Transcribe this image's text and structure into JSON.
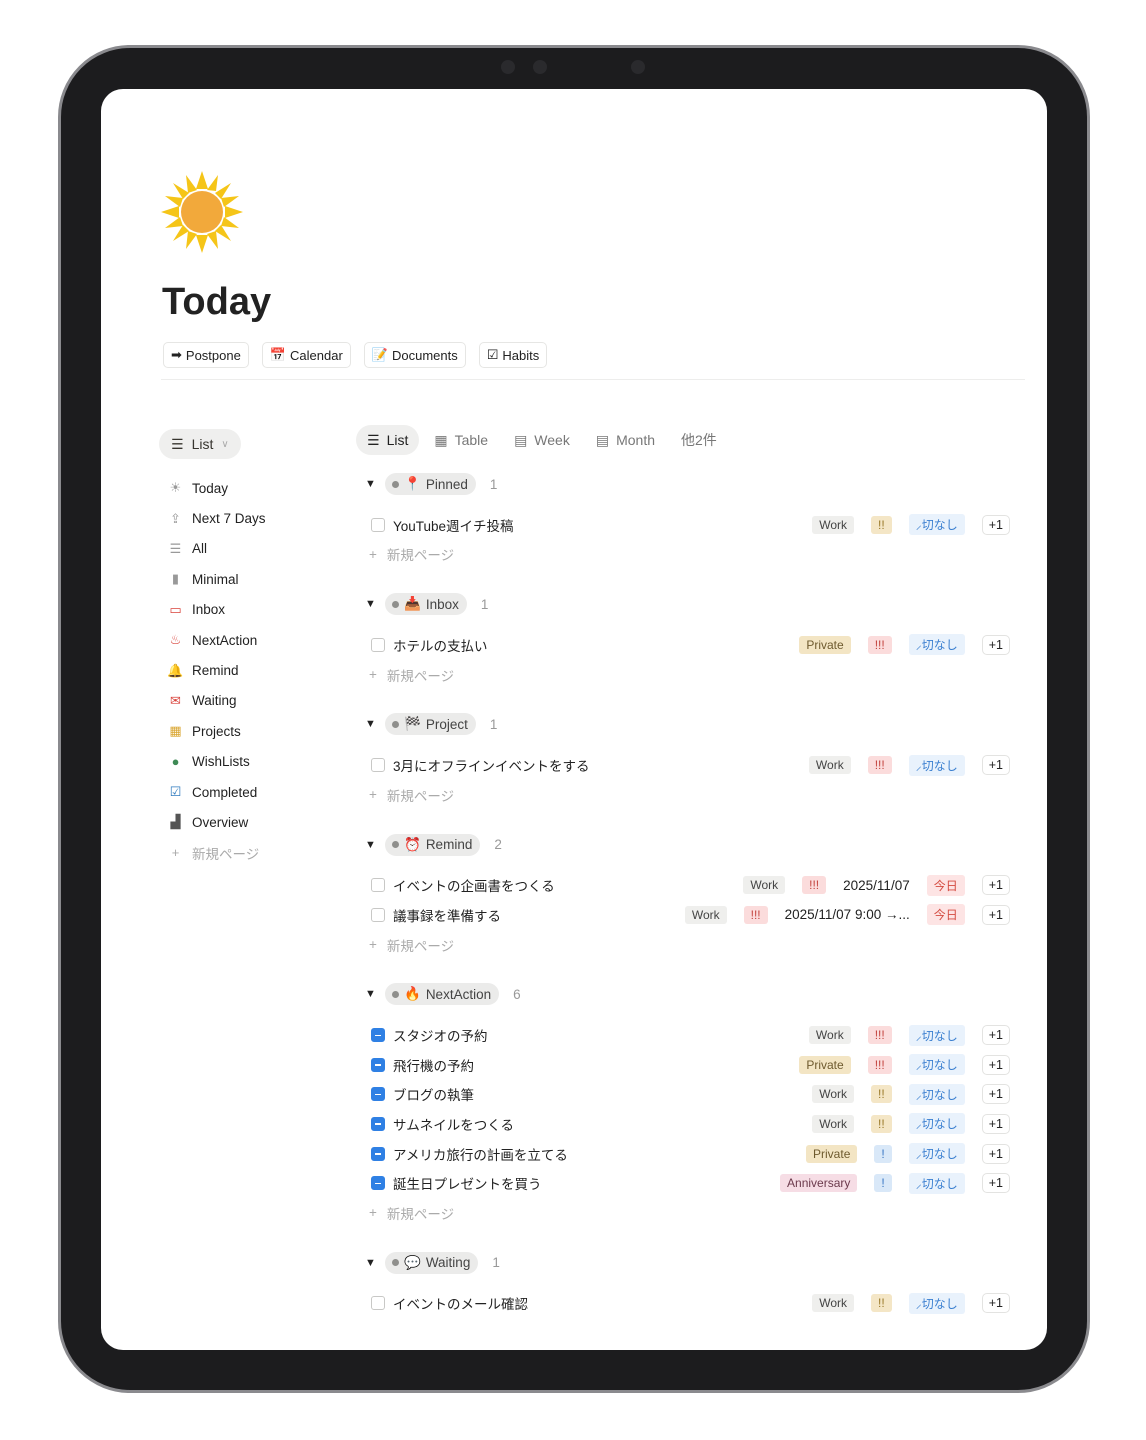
{
  "page": {
    "title": "Today",
    "icon": "sun-icon"
  },
  "links": [
    {
      "icon": "➡",
      "label": "Postpone"
    },
    {
      "icon": "📅",
      "label": "Calendar"
    },
    {
      "icon": "📝",
      "label": "Documents"
    },
    {
      "icon": "☑",
      "label": "Habits"
    }
  ],
  "sidebar": {
    "view_label": "List",
    "items": [
      {
        "icon": "☀",
        "label": "Today",
        "color": "#999"
      },
      {
        "icon": "⇪",
        "label": "Next 7 Days",
        "color": "#999"
      },
      {
        "icon": "☰",
        "label": "All",
        "color": "#999"
      },
      {
        "icon": "▮",
        "label": "Minimal",
        "color": "#999"
      },
      {
        "icon": "▭",
        "label": "Inbox",
        "color": "#d9443c"
      },
      {
        "icon": "♨",
        "label": "NextAction",
        "color": "#d9443c"
      },
      {
        "icon": "🔔",
        "label": "Remind",
        "color": "#d9443c"
      },
      {
        "icon": "✉",
        "label": "Waiting",
        "color": "#d9443c"
      },
      {
        "icon": "▦",
        "label": "Projects",
        "color": "#d9a52f"
      },
      {
        "icon": "●",
        "label": "WishLists",
        "color": "#3e8a55"
      },
      {
        "icon": "☑",
        "label": "Completed",
        "color": "#2f7bbf"
      },
      {
        "icon": "▟",
        "label": "Overview",
        "color": "#555"
      }
    ],
    "new_page": "新規ページ"
  },
  "tabs": [
    {
      "icon": "☰",
      "label": "List",
      "active": true
    },
    {
      "icon": "▦",
      "label": "Table"
    },
    {
      "icon": "▤",
      "label": "Week"
    },
    {
      "icon": "▤",
      "label": "Month"
    },
    {
      "icon": "",
      "label": "他2件"
    }
  ],
  "new_page_label": "新規ページ",
  "groups": [
    {
      "icon": "📍",
      "name": "Pinned",
      "count": "1",
      "items": [
        {
          "title": "YouTube週イチ投稿",
          "status": "todo",
          "tags": [
            {
              "text": "Work",
              "cls": "t-work"
            },
            {
              "text": "!!",
              "cls": "p2"
            },
            {
              "text": "⸝切なし",
              "cls": "dl"
            }
          ],
          "plus": "+1"
        }
      ]
    },
    {
      "icon": "📥",
      "name": "Inbox",
      "count": "1",
      "items": [
        {
          "title": "ホテルの支払い",
          "status": "todo",
          "tags": [
            {
              "text": "Private",
              "cls": "t-private"
            },
            {
              "text": "!!!",
              "cls": "p3"
            },
            {
              "text": "⸝切なし",
              "cls": "dl"
            }
          ],
          "plus": "+1"
        }
      ]
    },
    {
      "icon": "🏁",
      "name": "Project",
      "count": "1",
      "items": [
        {
          "title": "3月にオフラインイベントをする",
          "status": "todo",
          "tags": [
            {
              "text": "Work",
              "cls": "t-work"
            },
            {
              "text": "!!!",
              "cls": "p3"
            },
            {
              "text": "⸝切なし",
              "cls": "dl"
            }
          ],
          "plus": "+1"
        }
      ]
    },
    {
      "icon": "⏰",
      "name": "Remind",
      "count": "2",
      "items": [
        {
          "title": "イベントの企画書をつくる",
          "status": "todo",
          "tags": [
            {
              "text": "Work",
              "cls": "t-work"
            },
            {
              "text": "!!!",
              "cls": "p3"
            },
            {
              "text": "2025/11/07",
              "cls": "date"
            },
            {
              "text": "今日",
              "cls": "today"
            }
          ],
          "plus": "+1"
        },
        {
          "title": "議事録を準備する",
          "status": "todo",
          "tags": [
            {
              "text": "Work",
              "cls": "t-work"
            },
            {
              "text": "!!!",
              "cls": "p3"
            },
            {
              "text": "2025/11/07 9:00 →...",
              "cls": "date"
            },
            {
              "text": "今日",
              "cls": "today"
            }
          ],
          "plus": "+1"
        }
      ]
    },
    {
      "icon": "🔥",
      "name": "NextAction",
      "count": "6",
      "items": [
        {
          "title": "スタジオの予約",
          "status": "in-progress",
          "tags": [
            {
              "text": "Work",
              "cls": "t-work"
            },
            {
              "text": "!!!",
              "cls": "p3"
            },
            {
              "text": "⸝切なし",
              "cls": "dl"
            }
          ],
          "plus": "+1"
        },
        {
          "title": "飛行機の予約",
          "status": "in-progress",
          "tags": [
            {
              "text": "Private",
              "cls": "t-private"
            },
            {
              "text": "!!!",
              "cls": "p3"
            },
            {
              "text": "⸝切なし",
              "cls": "dl"
            }
          ],
          "plus": "+1"
        },
        {
          "title": "ブログの執筆",
          "status": "in-progress",
          "tags": [
            {
              "text": "Work",
              "cls": "t-work"
            },
            {
              "text": "!!",
              "cls": "p2"
            },
            {
              "text": "⸝切なし",
              "cls": "dl"
            }
          ],
          "plus": "+1"
        },
        {
          "title": "サムネイルをつくる",
          "status": "in-progress",
          "tags": [
            {
              "text": "Work",
              "cls": "t-work"
            },
            {
              "text": "!!",
              "cls": "p2"
            },
            {
              "text": "⸝切なし",
              "cls": "dl"
            }
          ],
          "plus": "+1"
        },
        {
          "title": "アメリカ旅行の計画を立てる",
          "status": "in-progress",
          "tags": [
            {
              "text": "Private",
              "cls": "t-private"
            },
            {
              "text": "!",
              "cls": "p1"
            },
            {
              "text": "⸝切なし",
              "cls": "dl"
            }
          ],
          "plus": "+1"
        },
        {
          "title": "誕生日プレゼントを買う",
          "status": "in-progress",
          "tags": [
            {
              "text": "Anniversary",
              "cls": "t-ann"
            },
            {
              "text": "!",
              "cls": "p1"
            },
            {
              "text": "⸝切なし",
              "cls": "dl"
            }
          ],
          "plus": "+1"
        }
      ]
    },
    {
      "icon": "💬",
      "name": "Waiting",
      "count": "1",
      "items": [
        {
          "title": "イベントのメール確認",
          "status": "todo",
          "tags": [
            {
              "text": "Work",
              "cls": "t-work"
            },
            {
              "text": "!!",
              "cls": "p2"
            },
            {
              "text": "⸝切なし",
              "cls": "dl"
            }
          ],
          "plus": "+1"
        }
      ]
    }
  ]
}
